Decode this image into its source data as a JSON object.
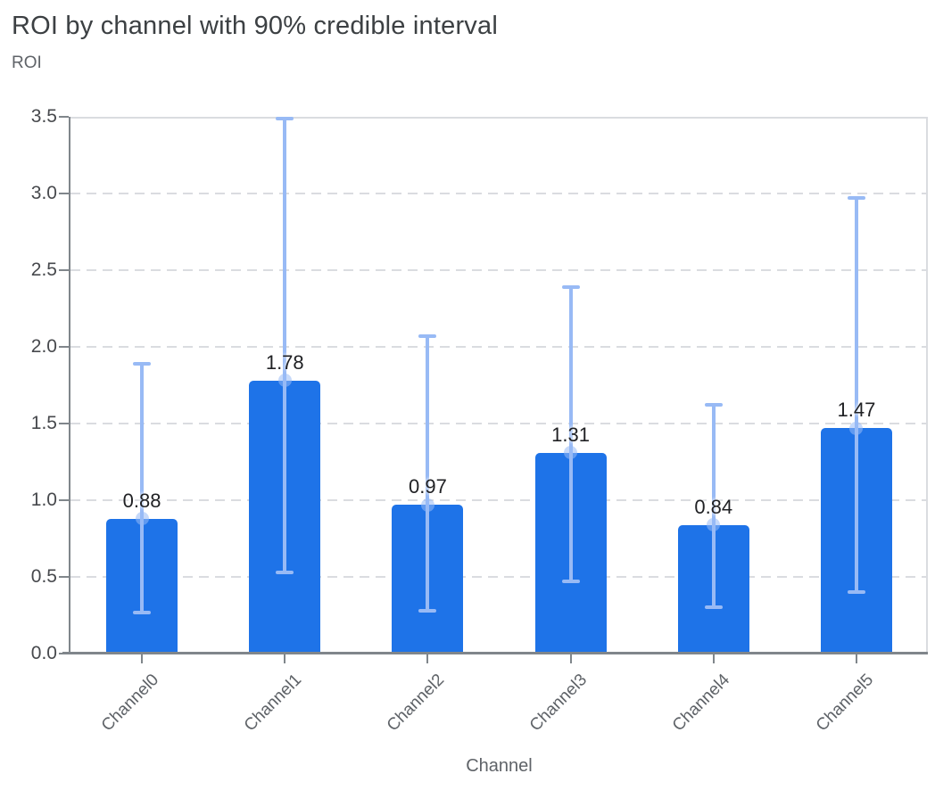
{
  "chart_data": {
    "type": "bar",
    "title": "ROI by channel with 90% credible interval",
    "ylabel": "ROI",
    "xlabel": "Channel",
    "categories": [
      "Channel0",
      "Channel1",
      "Channel2",
      "Channel3",
      "Channel4",
      "Channel5"
    ],
    "series": [
      {
        "name": "ROI",
        "values": [
          0.88,
          1.78,
          0.97,
          1.31,
          0.84,
          1.47
        ],
        "value_labels": [
          "0.88",
          "1.78",
          "0.97",
          "1.31",
          "0.84",
          "1.47"
        ],
        "ci_low": [
          0.27,
          0.53,
          0.28,
          0.47,
          0.3,
          0.4
        ],
        "ci_high": [
          1.89,
          3.49,
          2.07,
          2.39,
          1.62,
          2.97
        ]
      }
    ],
    "ylim": [
      0,
      3.5
    ],
    "ytick_labels": [
      "0.0",
      "0.5",
      "1.0",
      "1.5",
      "2.0",
      "2.5",
      "3.0",
      "3.5"
    ],
    "grid": "horizontal-dashed",
    "legend": "none",
    "error_bar_style": "vertical whiskers with end caps and mean dot",
    "colors": {
      "bar": "#1E73E8",
      "error_bar": "#98BAF5",
      "grid": "#DADCE0",
      "plot_border": "#DADCE0",
      "axis": "#80868B",
      "title_text": "#3C4043",
      "axis_text": "#5F6368",
      "tick_text": "#47494D",
      "value_text": "#202124"
    }
  }
}
